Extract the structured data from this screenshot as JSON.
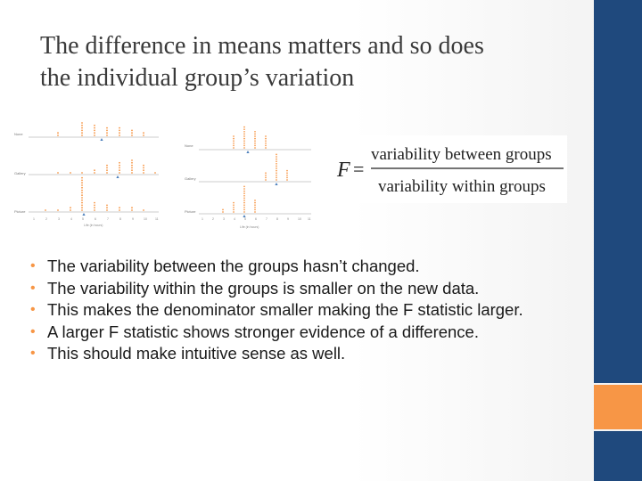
{
  "slide": {
    "title_lines": [
      "The difference in means matters and so does",
      "the individual group’s variation"
    ],
    "colors": {
      "accent_blue": "#1f497d",
      "accent_orange": "#f79646",
      "dot_color": "#f79646",
      "mean_marker": "#4a7ebb"
    }
  },
  "figure_left": {
    "rows": [
      "None",
      "Gallery",
      "Picture"
    ],
    "tick_labels": [
      "1",
      "2",
      "3",
      "4",
      "5",
      "6",
      "7",
      "8",
      "9",
      "10",
      "11"
    ],
    "xlabel": "Life (in hours)"
  },
  "figure_right": {
    "rows": [
      "None",
      "Gallery",
      "Picture"
    ],
    "tick_labels": [
      "1",
      "2",
      "3",
      "4",
      "5",
      "6",
      "7",
      "8",
      "9",
      "10",
      "11"
    ],
    "xlabel": "Life (in hours)"
  },
  "formula": {
    "lhs": "F",
    "eq": "=",
    "numerator": "variability between groups",
    "denominator": "variability within groups"
  },
  "bullets": [
    "The variability between the groups hasn’t changed.",
    "The variability within the groups is smaller on the new data.",
    "This makes the denominator smaller making the F statistic larger.",
    "A larger F statistic shows stronger evidence of a difference.",
    "This should make intuitive sense as well."
  ]
}
